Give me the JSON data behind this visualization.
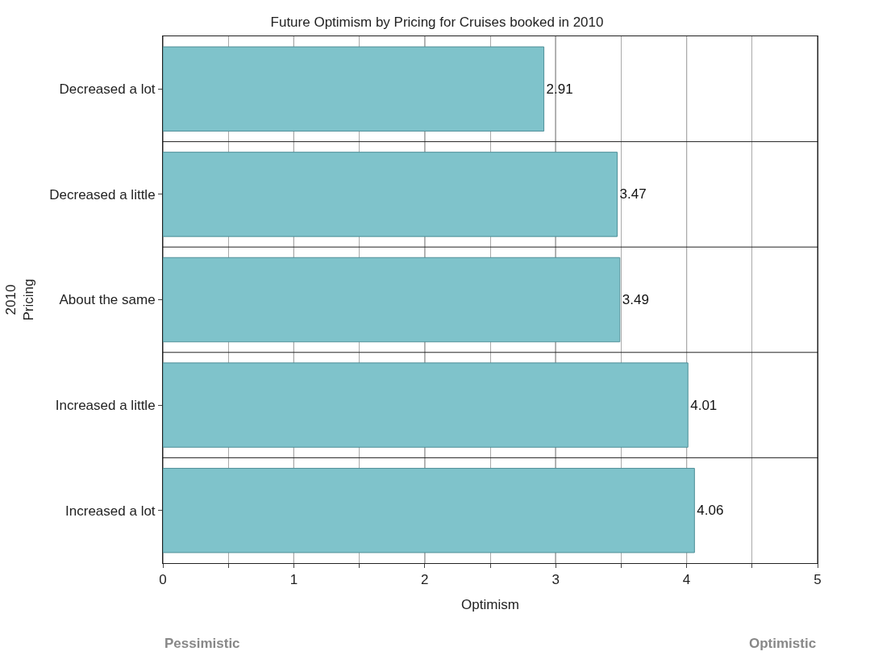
{
  "chart_data": {
    "type": "bar",
    "orientation": "horizontal",
    "title": "Future Optimism by Pricing for Cruises booked in 2010",
    "xlabel": "Optimism",
    "ylabel": "2010\nPricing",
    "categories": [
      "Decreased a lot",
      "Decreased a little",
      "About the same",
      "Increased a little",
      "Increased a lot"
    ],
    "values": [
      2.91,
      3.47,
      3.49,
      4.01,
      4.06
    ],
    "color": "#7fc3cb",
    "xlim": [
      0,
      5
    ],
    "xticks": [
      0,
      {
        "value": 0.5,
        "label": null
      },
      1,
      {
        "value": 1.5,
        "label": null
      },
      2,
      {
        "value": 2.5,
        "label": null
      },
      3,
      {
        "value": 3.5,
        "label": null
      },
      4,
      {
        "value": 4.5,
        "label": null
      },
      5
    ],
    "grid": "x",
    "data_labels": true,
    "annotations": [
      "Pessimistic",
      "Optimistic"
    ]
  }
}
